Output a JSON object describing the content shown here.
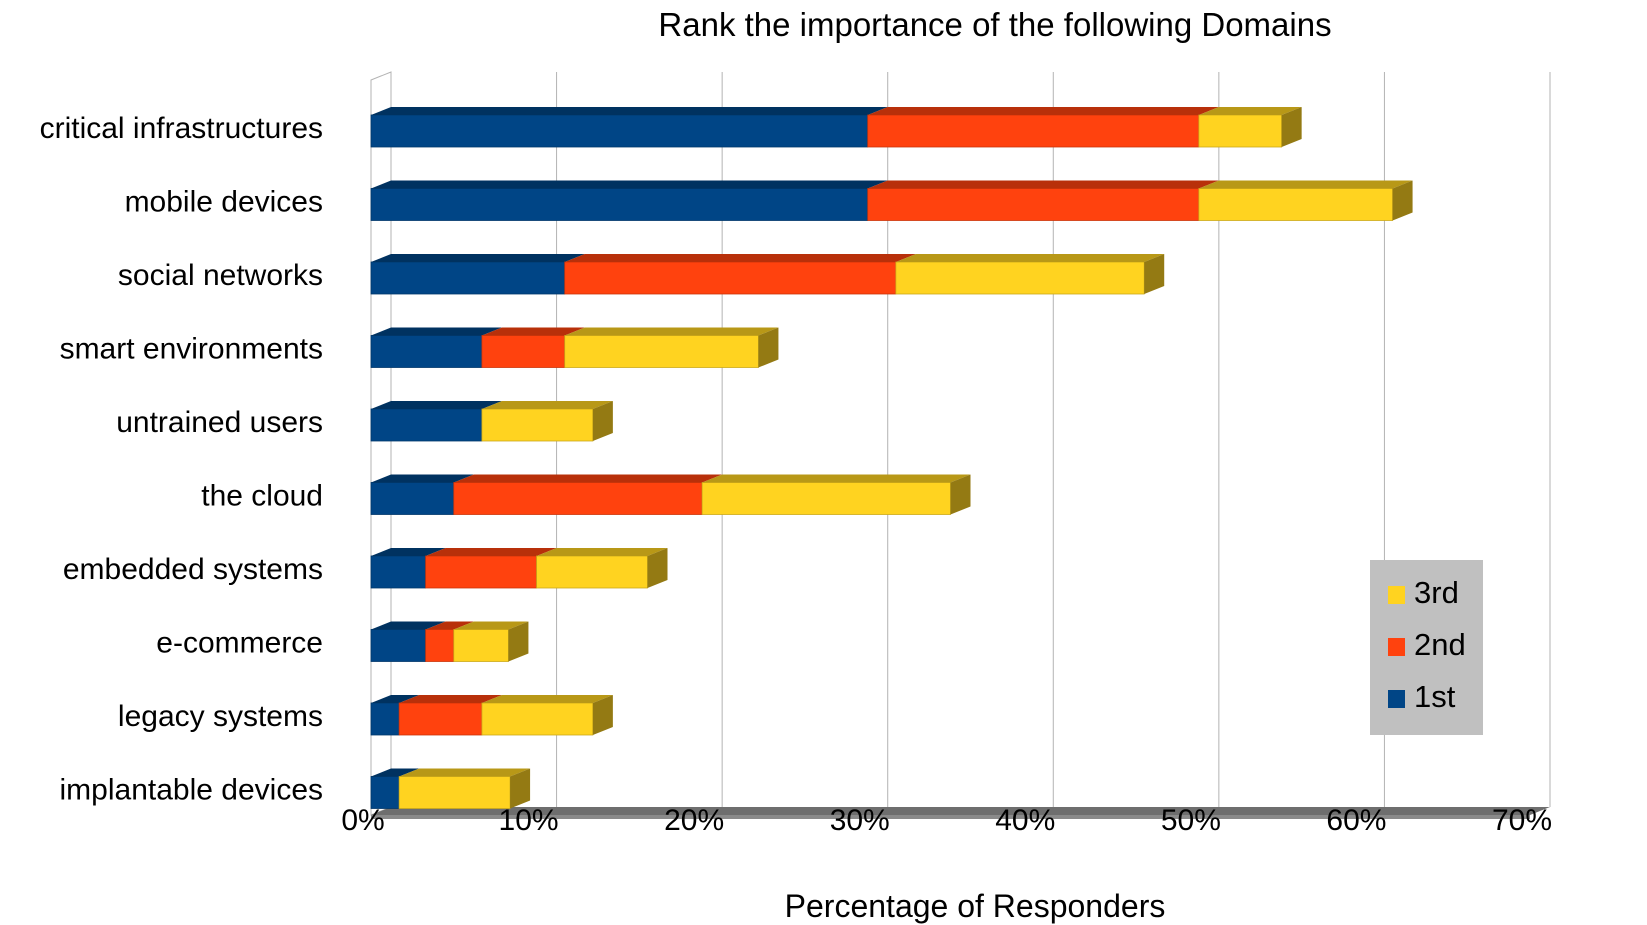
{
  "chart_data": {
    "type": "bar",
    "orientation": "horizontal",
    "stacked": true,
    "title": "Rank the importance of the following Domains",
    "xlabel": "Percentage of Responders",
    "ylabel": "",
    "xlim": [
      0,
      70
    ],
    "x_ticks": [
      "0%",
      "10%",
      "20%",
      "30%",
      "40%",
      "50%",
      "60%",
      "70%"
    ],
    "grid": true,
    "legend_position": "bottom-right",
    "categories": [
      "critical infrastructures",
      "mobile devices",
      "social networks",
      "smart environments",
      "untrained users",
      "the cloud",
      "embedded systems",
      "e-commerce",
      "legacy systems",
      "implantable devices"
    ],
    "series": [
      {
        "name": "1st",
        "color": "#004586",
        "values": [
          30,
          30,
          11.7,
          6.7,
          6.7,
          5,
          3.3,
          3.3,
          1.7,
          1.7
        ]
      },
      {
        "name": "2nd",
        "color": "#ff420e",
        "values": [
          20,
          20,
          20,
          5,
          0,
          15,
          6.7,
          1.7,
          5,
          0
        ]
      },
      {
        "name": "3rd",
        "color": "#ffd320",
        "values": [
          5,
          11.7,
          15,
          11.7,
          6.7,
          15,
          6.7,
          3.3,
          6.7,
          6.7
        ]
      }
    ],
    "legend_order": [
      "3rd",
      "2nd",
      "1st"
    ]
  }
}
